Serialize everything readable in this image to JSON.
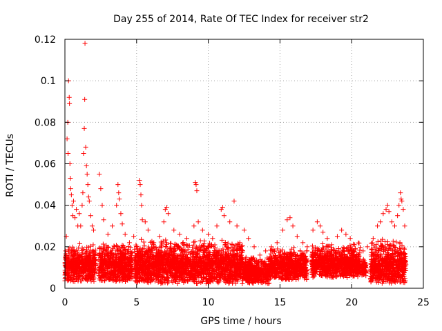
{
  "chart_data": {
    "type": "scatter",
    "title": "Day 255 of 2014, Rate Of TEC Index for receiver str2",
    "xlabel": "GPS time / hours",
    "ylabel": "ROTI / TECUs",
    "xlim": [
      0,
      25
    ],
    "ylim": [
      0,
      0.12
    ],
    "xticks": [
      0,
      5,
      10,
      15,
      20,
      25
    ],
    "xtick_labels": [
      "0",
      "5",
      "10",
      "15",
      "20",
      "25"
    ],
    "yticks": [
      0,
      0.02,
      0.04,
      0.06,
      0.08,
      0.1,
      0.12
    ],
    "ytick_labels": [
      "0",
      "0.02",
      "0.04",
      "0.06",
      "0.08",
      "0.1",
      "0.12"
    ],
    "grid": true,
    "marker": "+",
    "marker_color": "#ff0000",
    "series": [
      {
        "name": "ROTI",
        "points": [
          [
            0.05,
            0.018
          ],
          [
            0.1,
            0.025
          ],
          [
            0.15,
            0.072
          ],
          [
            0.2,
            0.08
          ],
          [
            0.22,
            0.065
          ],
          [
            0.25,
            0.1
          ],
          [
            0.3,
            0.092
          ],
          [
            0.32,
            0.089
          ],
          [
            0.35,
            0.06
          ],
          [
            0.38,
            0.053
          ],
          [
            0.4,
            0.048
          ],
          [
            0.45,
            0.045
          ],
          [
            0.5,
            0.04
          ],
          [
            0.55,
            0.035
          ],
          [
            0.6,
            0.042
          ],
          [
            0.7,
            0.034
          ],
          [
            0.8,
            0.038
          ],
          [
            0.9,
            0.03
          ],
          [
            1.0,
            0.036
          ],
          [
            1.1,
            0.03
          ],
          [
            1.2,
            0.04
          ],
          [
            1.25,
            0.046
          ],
          [
            1.3,
            0.065
          ],
          [
            1.35,
            0.077
          ],
          [
            1.38,
            0.091
          ],
          [
            1.4,
            0.118
          ],
          [
            1.45,
            0.068
          ],
          [
            1.5,
            0.059
          ],
          [
            1.55,
            0.055
          ],
          [
            1.6,
            0.05
          ],
          [
            1.65,
            0.044
          ],
          [
            1.7,
            0.042
          ],
          [
            1.8,
            0.035
          ],
          [
            1.9,
            0.03
          ],
          [
            2.0,
            0.028
          ],
          [
            2.4,
            0.055
          ],
          [
            2.5,
            0.048
          ],
          [
            2.6,
            0.04
          ],
          [
            2.7,
            0.033
          ],
          [
            3.0,
            0.026
          ],
          [
            3.3,
            0.03
          ],
          [
            3.6,
            0.04
          ],
          [
            3.7,
            0.05
          ],
          [
            3.75,
            0.046
          ],
          [
            3.8,
            0.043
          ],
          [
            3.9,
            0.036
          ],
          [
            4.0,
            0.031
          ],
          [
            4.2,
            0.026
          ],
          [
            4.5,
            0.022
          ],
          [
            4.8,
            0.025
          ],
          [
            5.2,
            0.052
          ],
          [
            5.25,
            0.05
          ],
          [
            5.3,
            0.045
          ],
          [
            5.35,
            0.04
          ],
          [
            5.4,
            0.033
          ],
          [
            5.6,
            0.032
          ],
          [
            5.8,
            0.028
          ],
          [
            6.2,
            0.022
          ],
          [
            6.6,
            0.025
          ],
          [
            6.9,
            0.032
          ],
          [
            7.0,
            0.038
          ],
          [
            7.1,
            0.039
          ],
          [
            7.2,
            0.036
          ],
          [
            7.6,
            0.028
          ],
          [
            8.0,
            0.026
          ],
          [
            8.5,
            0.024
          ],
          [
            9.0,
            0.03
          ],
          [
            9.1,
            0.051
          ],
          [
            9.15,
            0.05
          ],
          [
            9.2,
            0.047
          ],
          [
            9.3,
            0.032
          ],
          [
            9.6,
            0.028
          ],
          [
            10.0,
            0.026
          ],
          [
            10.3,
            0.024
          ],
          [
            10.6,
            0.03
          ],
          [
            10.9,
            0.038
          ],
          [
            11.0,
            0.039
          ],
          [
            11.1,
            0.035
          ],
          [
            11.5,
            0.032
          ],
          [
            11.8,
            0.042
          ],
          [
            12.0,
            0.03
          ],
          [
            12.2,
            0.022
          ],
          [
            12.5,
            0.028
          ],
          [
            12.8,
            0.024
          ],
          [
            13.2,
            0.02
          ],
          [
            13.6,
            0.016
          ],
          [
            14.0,
            0.018
          ],
          [
            14.4,
            0.02
          ],
          [
            14.8,
            0.022
          ],
          [
            15.2,
            0.028
          ],
          [
            15.5,
            0.033
          ],
          [
            15.7,
            0.034
          ],
          [
            15.9,
            0.03
          ],
          [
            16.2,
            0.025
          ],
          [
            16.6,
            0.022
          ],
          [
            16.9,
            0.02
          ],
          [
            17.3,
            0.028
          ],
          [
            17.6,
            0.032
          ],
          [
            17.8,
            0.03
          ],
          [
            18.0,
            0.027
          ],
          [
            18.3,
            0.024
          ],
          [
            18.6,
            0.021
          ],
          [
            19.0,
            0.025
          ],
          [
            19.3,
            0.028
          ],
          [
            19.6,
            0.026
          ],
          [
            19.9,
            0.024
          ],
          [
            20.2,
            0.021
          ],
          [
            20.5,
            0.016
          ],
          [
            20.8,
            0.018
          ],
          [
            21.1,
            0.02
          ],
          [
            21.5,
            0.024
          ],
          [
            21.8,
            0.03
          ],
          [
            22.0,
            0.032
          ],
          [
            22.2,
            0.036
          ],
          [
            22.4,
            0.038
          ],
          [
            22.5,
            0.04
          ],
          [
            22.6,
            0.037
          ],
          [
            22.8,
            0.032
          ],
          [
            23.0,
            0.03
          ],
          [
            23.2,
            0.035
          ],
          [
            23.3,
            0.04
          ],
          [
            23.4,
            0.046
          ],
          [
            23.45,
            0.043
          ],
          [
            23.5,
            0.042
          ],
          [
            23.6,
            0.038
          ],
          [
            23.7,
            0.03
          ]
        ]
      }
    ],
    "dense_band": {
      "description_free": true,
      "segments": [
        [
          0.0,
          2.15,
          0.003,
          0.022
        ],
        [
          2.35,
          4.7,
          0.003,
          0.022
        ],
        [
          4.85,
          12.4,
          0.002,
          0.024
        ],
        [
          12.4,
          14.3,
          0.002,
          0.016
        ],
        [
          14.3,
          16.9,
          0.004,
          0.02
        ],
        [
          17.2,
          20.6,
          0.005,
          0.022
        ],
        [
          20.7,
          21.0,
          0.006,
          0.015
        ],
        [
          21.3,
          23.8,
          0.002,
          0.024
        ]
      ]
    }
  }
}
